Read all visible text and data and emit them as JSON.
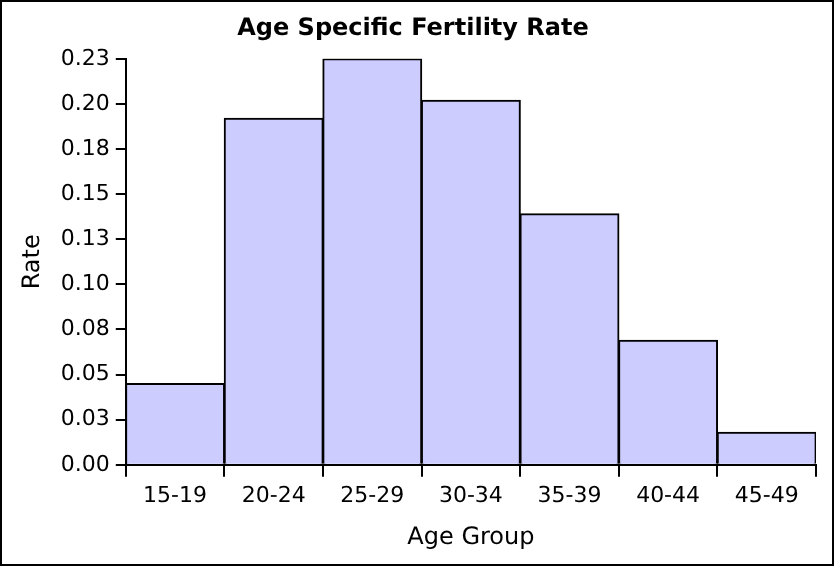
{
  "chart_data": {
    "type": "bar",
    "title": "Age Specific Fertility Rate",
    "xlabel": "Age Group",
    "ylabel": "Rate",
    "categories": [
      "15-19",
      "20-24",
      "25-29",
      "30-34",
      "35-39",
      "40-44",
      "45-49"
    ],
    "values": [
      0.045,
      0.192,
      0.225,
      0.202,
      0.139,
      0.069,
      0.018
    ],
    "color": "#ccccff",
    "ylim": [
      0,
      0.225
    ],
    "yticks": [
      {
        "value": 0,
        "label": "0.00"
      },
      {
        "value": 0.025,
        "label": "0.03"
      },
      {
        "value": 0.05,
        "label": "0.05"
      },
      {
        "value": 0.075,
        "label": "0.08"
      },
      {
        "value": 0.1,
        "label": "0.10"
      },
      {
        "value": 0.125,
        "label": "0.13"
      },
      {
        "value": 0.15,
        "label": "0.15"
      },
      {
        "value": 0.175,
        "label": "0.18"
      },
      {
        "value": 0.2,
        "label": "0.20"
      },
      {
        "value": 0.225,
        "label": "0.23"
      }
    ],
    "grid": false,
    "legend": false
  }
}
